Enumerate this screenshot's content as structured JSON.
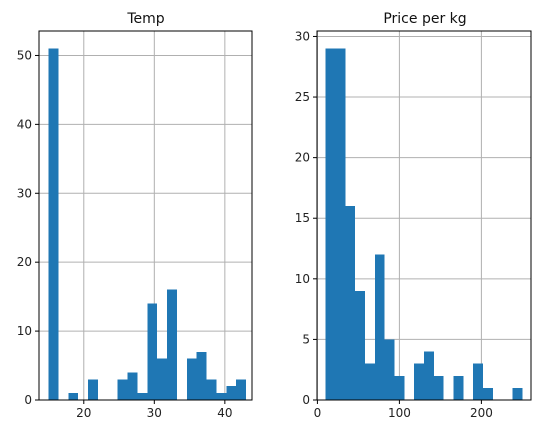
{
  "chart_data": [
    {
      "type": "bar",
      "title": "Temp",
      "xlabel": "",
      "ylabel": "",
      "xlim": [
        13.65,
        43.85
      ],
      "ylim": [
        0,
        53.55
      ],
      "x_ticks": [
        20,
        30,
        40
      ],
      "y_ticks": [
        0,
        10,
        20,
        30,
        40,
        50
      ],
      "grid": true,
      "color": "#1f77b4",
      "bins": [
        {
          "x0": 15.0,
          "x1": 16.4,
          "value": 51
        },
        {
          "x0": 16.4,
          "x1": 17.8,
          "value": 0
        },
        {
          "x0": 17.8,
          "x1": 19.2,
          "value": 1
        },
        {
          "x0": 19.2,
          "x1": 20.6,
          "value": 0
        },
        {
          "x0": 20.6,
          "x1": 22.0,
          "value": 3
        },
        {
          "x0": 22.0,
          "x1": 23.4,
          "value": 0
        },
        {
          "x0": 23.4,
          "x1": 24.8,
          "value": 0
        },
        {
          "x0": 24.8,
          "x1": 26.2,
          "value": 3
        },
        {
          "x0": 26.2,
          "x1": 27.6,
          "value": 4
        },
        {
          "x0": 27.6,
          "x1": 29.0,
          "value": 1
        },
        {
          "x0": 29.0,
          "x1": 30.4,
          "value": 14
        },
        {
          "x0": 30.4,
          "x1": 31.8,
          "value": 6
        },
        {
          "x0": 31.8,
          "x1": 33.2,
          "value": 16
        },
        {
          "x0": 33.2,
          "x1": 34.6,
          "value": 0
        },
        {
          "x0": 34.6,
          "x1": 36.0,
          "value": 6
        },
        {
          "x0": 36.0,
          "x1": 37.4,
          "value": 7
        },
        {
          "x0": 37.4,
          "x1": 38.8,
          "value": 3
        },
        {
          "x0": 38.8,
          "x1": 40.2,
          "value": 1
        },
        {
          "x0": 40.2,
          "x1": 41.6,
          "value": 2
        },
        {
          "x0": 41.6,
          "x1": 43.0,
          "value": 3
        }
      ]
    },
    {
      "type": "bar",
      "title": "Price per kg",
      "xlabel": "",
      "ylabel": "",
      "xlim": [
        -0.5,
        260.5
      ],
      "ylim": [
        0,
        30.45
      ],
      "x_ticks": [
        0,
        100,
        200
      ],
      "y_ticks": [
        0,
        5,
        10,
        15,
        20,
        25,
        30
      ],
      "grid": true,
      "color": "#1f77b4",
      "bins": [
        {
          "x0": 10,
          "x1": 22,
          "value": 29
        },
        {
          "x0": 22,
          "x1": 34,
          "value": 29
        },
        {
          "x0": 34,
          "x1": 46,
          "value": 16
        },
        {
          "x0": 46,
          "x1": 58,
          "value": 9
        },
        {
          "x0": 58,
          "x1": 70,
          "value": 3
        },
        {
          "x0": 70,
          "x1": 82,
          "value": 12
        },
        {
          "x0": 82,
          "x1": 94,
          "value": 5
        },
        {
          "x0": 94,
          "x1": 106,
          "value": 2
        },
        {
          "x0": 106,
          "x1": 118,
          "value": 0
        },
        {
          "x0": 118,
          "x1": 130,
          "value": 3
        },
        {
          "x0": 130,
          "x1": 142,
          "value": 4
        },
        {
          "x0": 142,
          "x1": 154,
          "value": 2
        },
        {
          "x0": 154,
          "x1": 166,
          "value": 0
        },
        {
          "x0": 166,
          "x1": 178,
          "value": 2
        },
        {
          "x0": 178,
          "x1": 190,
          "value": 0
        },
        {
          "x0": 190,
          "x1": 202,
          "value": 3
        },
        {
          "x0": 202,
          "x1": 214,
          "value": 1
        },
        {
          "x0": 214,
          "x1": 226,
          "value": 0
        },
        {
          "x0": 226,
          "x1": 238,
          "value": 0
        },
        {
          "x0": 238,
          "x1": 250,
          "value": 1
        }
      ]
    }
  ]
}
